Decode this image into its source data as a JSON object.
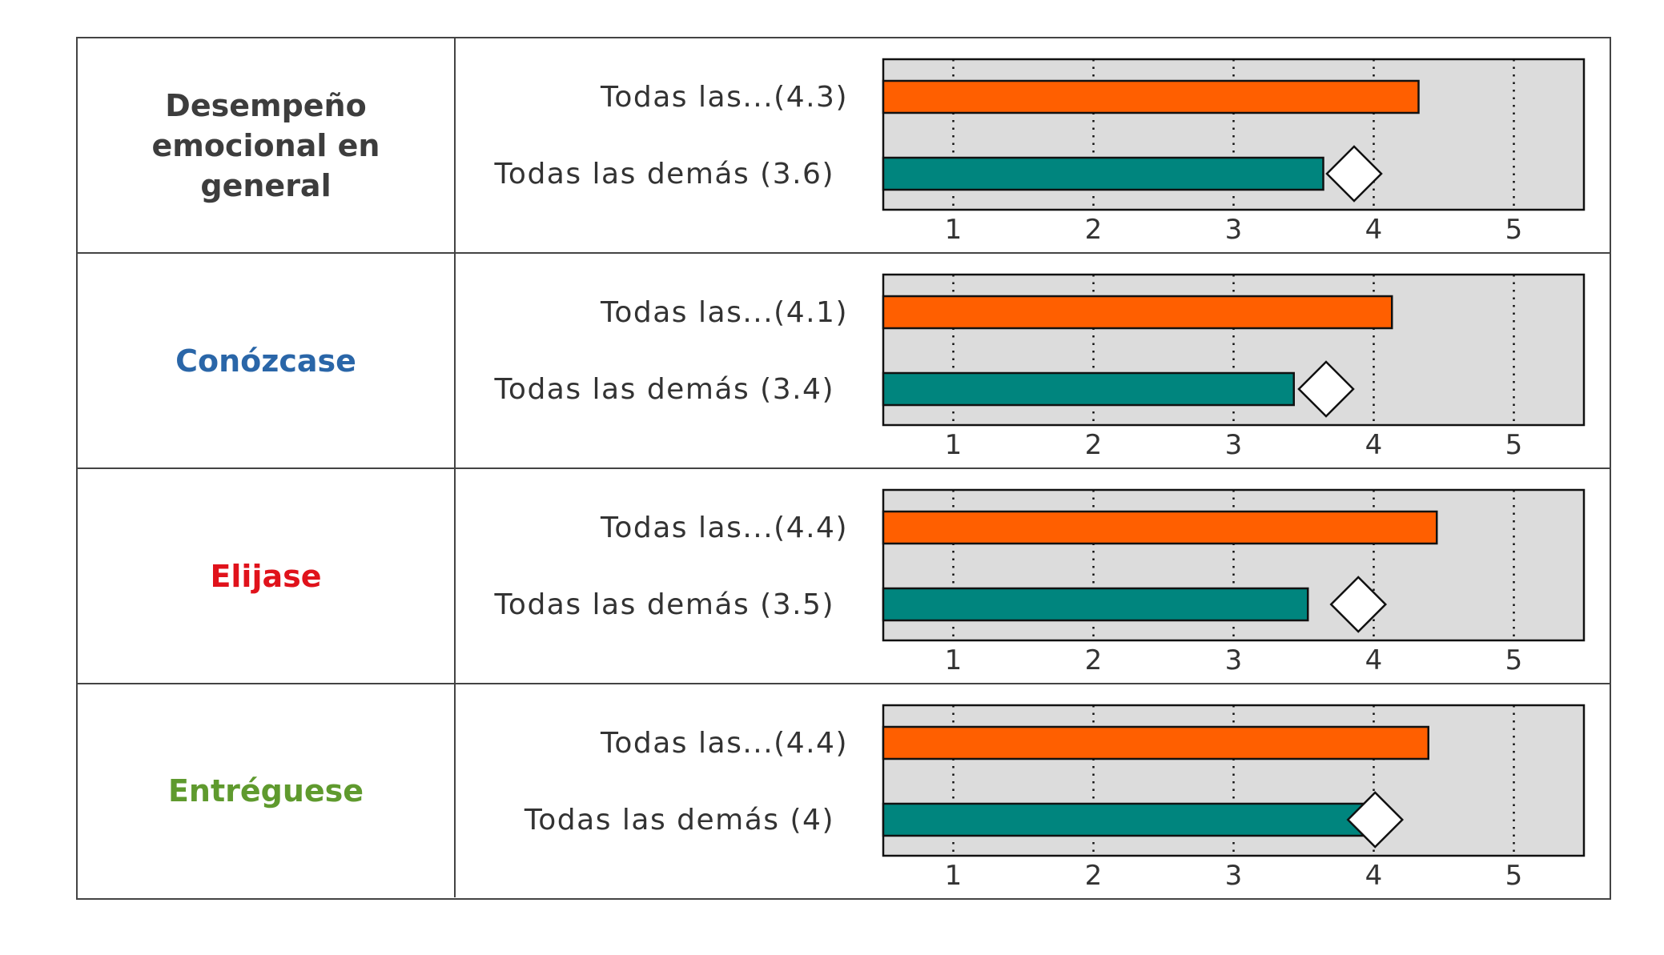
{
  "chart_data": [
    {
      "type": "bar",
      "title": "Desempeño emocional en general",
      "title_color": "#3d3d3d",
      "xlim": [
        0.5,
        5.5
      ],
      "xticks": [
        1,
        2,
        3,
        4,
        5
      ],
      "grid": "dotted vertical",
      "series": [
        {
          "label": "Todas las...(4.3)",
          "value": 4.32,
          "color": "#ff5f00"
        },
        {
          "label": "Todas las demás (3.6)",
          "value": 3.64,
          "color": "#00857e"
        }
      ],
      "marker": {
        "shape": "diamond",
        "value": 3.86
      }
    },
    {
      "type": "bar",
      "title": "Conózcase",
      "title_color": "#2a66a8",
      "xlim": [
        0.5,
        5.5
      ],
      "xticks": [
        1,
        2,
        3,
        4,
        5
      ],
      "grid": "dotted vertical",
      "series": [
        {
          "label": "Todas las...(4.1)",
          "value": 4.13,
          "color": "#ff5f00"
        },
        {
          "label": "Todas las demás (3.4)",
          "value": 3.43,
          "color": "#00857e"
        }
      ],
      "marker": {
        "shape": "diamond",
        "value": 3.66
      }
    },
    {
      "type": "bar",
      "title": "Elijase",
      "title_color": "#e0121b",
      "xlim": [
        0.5,
        5.5
      ],
      "xticks": [
        1,
        2,
        3,
        4,
        5
      ],
      "grid": "dotted vertical",
      "series": [
        {
          "label": "Todas las...(4.4)",
          "value": 4.45,
          "color": "#ff5f00"
        },
        {
          "label": "Todas las demás (3.5)",
          "value": 3.53,
          "color": "#00857e"
        }
      ],
      "marker": {
        "shape": "diamond",
        "value": 3.89
      }
    },
    {
      "type": "bar",
      "title": "Entréguese",
      "title_color": "#5f9a2e",
      "xlim": [
        0.5,
        5.5
      ],
      "xticks": [
        1,
        2,
        3,
        4,
        5
      ],
      "grid": "dotted vertical",
      "series": [
        {
          "label": "Todas las...(4.4)",
          "value": 4.39,
          "color": "#ff5f00"
        },
        {
          "label": "Todas las demás (4)",
          "value": 3.96,
          "color": "#00857e"
        }
      ],
      "marker": {
        "shape": "diamond",
        "value": 4.01
      }
    }
  ]
}
